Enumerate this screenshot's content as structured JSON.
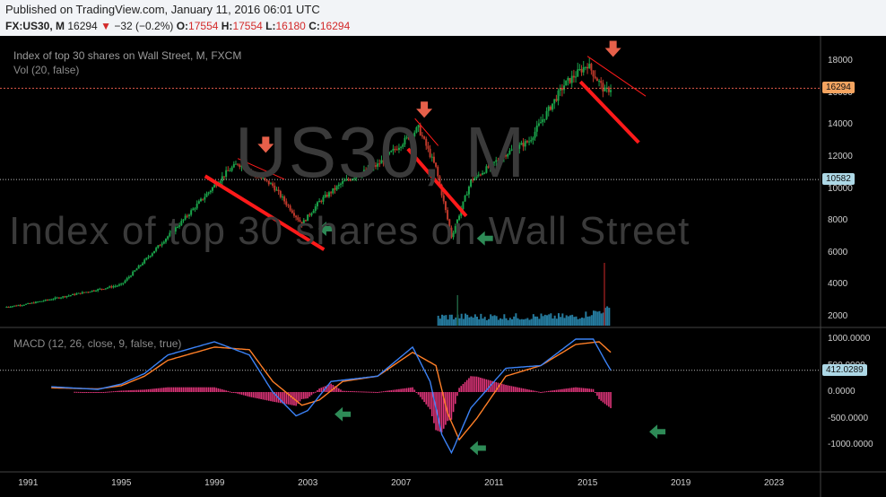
{
  "header": {
    "published": "Published on TradingView.com, January 11, 2016 06:01 UTC",
    "symbol": "FX:US30, M",
    "last": "16294",
    "change": "−32 (−0.2%)",
    "o_label": "O:",
    "o_val": "17554",
    "h_label": "H:",
    "h_val": "17554",
    "l_label": "L:",
    "l_val": "16180",
    "c_label": "C:",
    "c_val": "16294"
  },
  "panel": {
    "title": "Index of top 30 shares on Wall Street, M, FXCM",
    "volume": "Vol (20, false)",
    "macd_label": "MACD (12, 26, close, 9, false, true)",
    "watermark_symbol": "US30, M",
    "watermark_desc": "Index of top 30 shares on Wall Street"
  },
  "colors": {
    "background": "#000000",
    "up": "#1aa34a",
    "down": "#c0392b",
    "trend_line": "#ff1a1a",
    "macd_line": "#3b82f6",
    "signal_line": "#ff7f27",
    "histogram": "#e0357a",
    "volume": "#2b8fb8",
    "arrow_down": "#e7604a",
    "arrow_left": "#2e8b57",
    "price_badge": "#f4a460",
    "level_badge": "#add8e6"
  },
  "chart_data": {
    "type": "candlestick",
    "price_axis": {
      "ticks": [
        2000,
        4000,
        6000,
        8000,
        10000,
        12000,
        14000,
        16000,
        18000
      ],
      "labels": [
        "2000",
        "4000",
        "6000",
        "8000",
        "10000",
        "12000",
        "14000",
        "16000",
        "18000"
      ],
      "ylim": [
        1000,
        19000
      ]
    },
    "macd_axis": {
      "ticks": [
        1000,
        500,
        0,
        -500,
        -1000
      ],
      "labels": [
        "1000.0000",
        "500.0000",
        "0.0000",
        "-500.0000",
        "-1000.0000"
      ],
      "ylim": [
        -1100,
        1100
      ]
    },
    "x_axis": {
      "years": [
        1991,
        1995,
        1999,
        2003,
        2007,
        2011,
        2015,
        2019,
        2023
      ],
      "labels": [
        "1991",
        "1995",
        "1999",
        "2003",
        "2007",
        "2011",
        "2015",
        "2019",
        "2023"
      ],
      "xlim": [
        1989.8,
        2025.0
      ]
    },
    "price_keypoints": [
      [
        1990.0,
        2600
      ],
      [
        1991.0,
        2800
      ],
      [
        1993.0,
        3400
      ],
      [
        1995.0,
        4000
      ],
      [
        1996.0,
        5500
      ],
      [
        1997.5,
        7800
      ],
      [
        1999.5,
        11000
      ],
      [
        2000.0,
        11600
      ],
      [
        2001.5,
        10200
      ],
      [
        2002.75,
        7800
      ],
      [
        2003.5,
        9200
      ],
      [
        2004.5,
        10400
      ],
      [
        2006.0,
        11500
      ],
      [
        2007.75,
        13800
      ],
      [
        2008.5,
        11300
      ],
      [
        2009.17,
        7000
      ],
      [
        2010.0,
        10500
      ],
      [
        2011.5,
        12200
      ],
      [
        2012.5,
        13000
      ],
      [
        2014.0,
        16500
      ],
      [
        2015.0,
        17800
      ],
      [
        2015.75,
        16100
      ],
      [
        2016.0,
        16294
      ]
    ],
    "last_price": 16294,
    "level": 10582,
    "macd_level": "412.0289",
    "macd_keypoints": [
      [
        1992.0,
        100
      ],
      [
        1994.0,
        50
      ],
      [
        1995.0,
        150
      ],
      [
        1996.0,
        350
      ],
      [
        1997.0,
        700
      ],
      [
        1999.0,
        950
      ],
      [
        2000.5,
        700
      ],
      [
        2001.5,
        0
      ],
      [
        2002.5,
        -450
      ],
      [
        2003.0,
        -350
      ],
      [
        2004.0,
        200
      ],
      [
        2006.0,
        300
      ],
      [
        2007.5,
        850
      ],
      [
        2008.25,
        200
      ],
      [
        2008.75,
        -800
      ],
      [
        2009.17,
        -1150
      ],
      [
        2010.0,
        -300
      ],
      [
        2011.5,
        450
      ],
      [
        2013.0,
        500
      ],
      [
        2014.5,
        1000
      ],
      [
        2015.25,
        1000
      ],
      [
        2015.75,
        600
      ],
      [
        2016.0,
        412
      ]
    ],
    "signal_keypoints": [
      [
        1992.0,
        80
      ],
      [
        1994.0,
        60
      ],
      [
        1995.0,
        120
      ],
      [
        1996.0,
        300
      ],
      [
        1997.0,
        600
      ],
      [
        1999.0,
        850
      ],
      [
        2000.5,
        800
      ],
      [
        2001.5,
        200
      ],
      [
        2002.75,
        -250
      ],
      [
        2003.5,
        -150
      ],
      [
        2004.5,
        200
      ],
      [
        2006.0,
        300
      ],
      [
        2007.5,
        750
      ],
      [
        2008.5,
        500
      ],
      [
        2009.0,
        -400
      ],
      [
        2009.5,
        -900
      ],
      [
        2010.25,
        -500
      ],
      [
        2011.5,
        300
      ],
      [
        2013.0,
        500
      ],
      [
        2014.5,
        900
      ],
      [
        2015.5,
        950
      ],
      [
        2016.0,
        750
      ]
    ],
    "trend_lines": [
      {
        "from": [
          1998.6,
          10800
        ],
        "to": [
          2003.7,
          6200
        ],
        "width": "thick"
      },
      {
        "from": [
          2007.3,
          12500
        ],
        "to": [
          2009.8,
          8300
        ],
        "width": "thick"
      },
      {
        "from": [
          2014.7,
          16700
        ],
        "to": [
          2017.2,
          12900
        ],
        "width": "thick"
      },
      {
        "from": [
          2000.0,
          11900
        ],
        "to": [
          2002.0,
          10600
        ],
        "width": "thin"
      },
      {
        "from": [
          2007.6,
          14400
        ],
        "to": [
          2008.6,
          12700
        ],
        "width": "thin"
      },
      {
        "from": [
          2015.0,
          18300
        ],
        "to": [
          2017.5,
          15800
        ],
        "width": "thin"
      }
    ],
    "down_arrows": [
      [
        2001.2,
        12700
      ],
      [
        2008.0,
        14900
      ],
      [
        2016.1,
        18700
      ]
    ],
    "left_arrows_price": [
      [
        2003.8,
        7500
      ],
      [
        2010.6,
        6900
      ]
    ],
    "left_arrows_macd": [
      [
        2004.5,
        -420
      ],
      [
        2010.3,
        -1060
      ],
      [
        2018.0,
        -750
      ]
    ]
  }
}
